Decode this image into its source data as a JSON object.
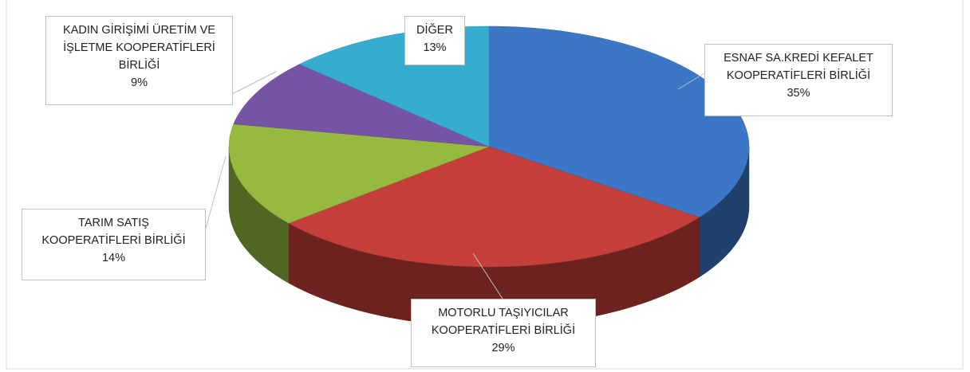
{
  "chart_data": {
    "type": "pie",
    "categories": [
      "ESNAF SA.KREDİ KEFALET KOOPERATİFLERİ BİRLİĞİ",
      "MOTORLU TAŞIYICILAR KOOPERATİFLERİ BİRLİĞİ",
      "TARIM SATIŞ KOOPERATİFLERİ BİRLİĞİ",
      "KADIN GİRİŞİMİ ÜRETİM VE İŞLETME KOOPERATİFLERİ BİRLİĞİ",
      "DİĞER"
    ],
    "values": [
      35,
      29,
      14,
      9,
      13
    ],
    "value_labels": [
      "35%",
      "29%",
      "14%",
      "9%",
      "13%"
    ],
    "colors": [
      "#3b77c6",
      "#c53f3a",
      "#95ba3f",
      "#7753a3",
      "#35acd0"
    ]
  }
}
